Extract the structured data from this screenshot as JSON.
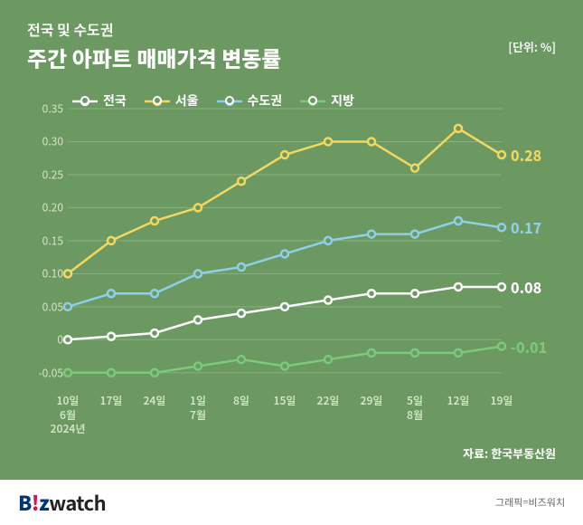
{
  "subtitle": "전국 및 수도권",
  "title": "주간 아파트 매매가격 변동률",
  "unit": "[단위: %]",
  "source": "자료: 한국부동산원",
  "credit": "그래픽=비즈워치",
  "logo": {
    "b": "B",
    "i": "!",
    "z": "z",
    "watch": "watch"
  },
  "chart": {
    "type": "line",
    "ylim": [
      -0.075,
      0.35
    ],
    "yticks": [
      -0.05,
      0,
      0.05,
      0.1,
      0.15,
      0.2,
      0.25,
      0.3,
      0.35
    ],
    "ytick_labels": [
      "-0.05",
      "0",
      "0.05",
      "0.10",
      "0.15",
      "0.20",
      "0.25",
      "0.30",
      "0.35"
    ],
    "xlabels": [
      "10일\n6월\n2024년",
      "17일",
      "24일",
      "1일\n7월",
      "8일",
      "15일",
      "22일",
      "29일",
      "5일\n8월",
      "12일",
      "19일"
    ],
    "background_color": "#6b9961",
    "grid_color": "#8ab080",
    "axis_label_color": "#d4e4c9",
    "point_fill": "#6b9961",
    "series": [
      {
        "name": "전국",
        "color": "#ffffff",
        "values": [
          0.0,
          0.005,
          0.01,
          0.03,
          0.04,
          0.05,
          0.06,
          0.07,
          0.07,
          0.08,
          0.08
        ],
        "end_label": "0.08"
      },
      {
        "name": "서울",
        "color": "#f3d860",
        "values": [
          0.1,
          0.15,
          0.18,
          0.2,
          0.24,
          0.28,
          0.3,
          0.3,
          0.26,
          0.32,
          0.28
        ],
        "end_label": "0.28"
      },
      {
        "name": "수도권",
        "color": "#8fcfe8",
        "values": [
          0.05,
          0.07,
          0.07,
          0.1,
          0.11,
          0.13,
          0.15,
          0.16,
          0.16,
          0.18,
          0.17
        ],
        "end_label": "0.17"
      },
      {
        "name": "지방",
        "color": "#7bc97b",
        "values": [
          -0.05,
          -0.05,
          -0.05,
          -0.04,
          -0.03,
          -0.04,
          -0.03,
          -0.02,
          -0.02,
          -0.02,
          -0.01
        ],
        "end_label": "-0.01"
      }
    ]
  }
}
